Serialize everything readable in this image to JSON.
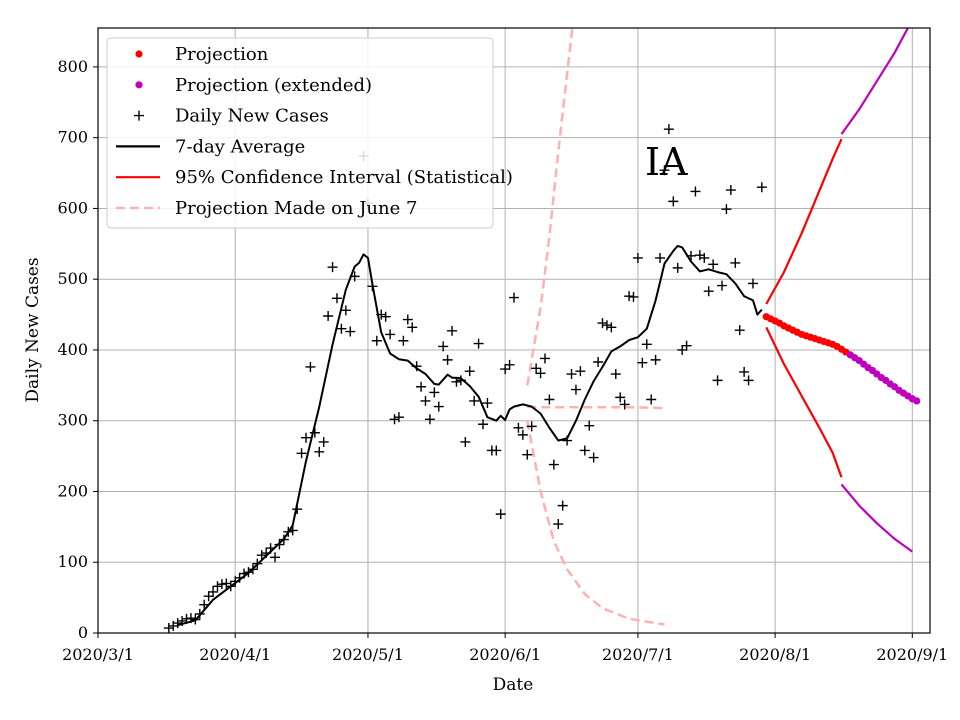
{
  "chart_data": {
    "type": "line",
    "annotation": "IA",
    "xlabel": "Date",
    "ylabel": "Daily New Cases",
    "x_ticks": [
      "2020/3/1",
      "2020/4/1",
      "2020/5/1",
      "2020/6/1",
      "2020/7/1",
      "2020/8/1",
      "2020/9/1"
    ],
    "y_ticks": [
      "0",
      "100",
      "200",
      "300",
      "400",
      "500",
      "600",
      "700",
      "800"
    ],
    "x_range_days": [
      0,
      188
    ],
    "ylim": [
      0,
      855
    ],
    "grid": true,
    "legend": {
      "position": "top-left",
      "entries": [
        {
          "label": "Projection",
          "marker": "dot",
          "color": "#ff0000"
        },
        {
          "label": "Projection (extended)",
          "marker": "dot",
          "color": "#bf00bf"
        },
        {
          "label": "Daily New Cases",
          "marker": "plus",
          "color": "#000000"
        },
        {
          "label": "7-day Average",
          "marker": "line",
          "color": "#000000"
        },
        {
          "label": "95% Confidence Interval (Statistical)",
          "marker": "line",
          "color": "#ff0000"
        },
        {
          "label": "Projection Made on June 7",
          "marker": "dashed",
          "color": "#ffb0b0"
        }
      ]
    },
    "colors": {
      "projection": "#ff0000",
      "extended": "#bf00bf",
      "daily": "#000000",
      "average": "#000000",
      "ci": "#ff0000",
      "june7": "#ffb0b0",
      "grid": "#b0b0b0"
    },
    "series": [
      {
        "name": "Daily New Cases",
        "x_unit": "days since 2020-03-01",
        "points": [
          [
            16,
            7
          ],
          [
            17,
            10
          ],
          [
            18,
            14
          ],
          [
            19,
            17
          ],
          [
            20,
            20
          ],
          [
            21,
            21
          ],
          [
            22,
            19
          ],
          [
            23,
            27
          ],
          [
            24,
            40
          ],
          [
            25,
            52
          ],
          [
            26,
            58
          ],
          [
            27,
            66
          ],
          [
            28,
            69
          ],
          [
            29,
            70
          ],
          [
            30,
            66
          ],
          [
            31,
            73
          ],
          [
            32,
            78
          ],
          [
            33,
            84
          ],
          [
            34,
            86
          ],
          [
            35,
            90
          ],
          [
            36,
            98
          ],
          [
            37,
            110
          ],
          [
            38,
            113
          ],
          [
            39,
            120
          ],
          [
            40,
            107
          ],
          [
            41,
            125
          ],
          [
            42,
            132
          ],
          [
            43,
            143
          ],
          [
            44,
            145
          ],
          [
            45,
            175
          ],
          [
            46,
            254
          ],
          [
            47,
            276
          ],
          [
            48,
            376
          ],
          [
            49,
            283
          ],
          [
            50,
            256
          ],
          [
            51,
            270
          ],
          [
            52,
            448
          ],
          [
            53,
            517
          ],
          [
            54,
            473
          ],
          [
            55,
            430
          ],
          [
            56,
            456
          ],
          [
            57,
            426
          ],
          [
            58,
            504
          ],
          [
            60,
            674
          ],
          [
            61,
            607
          ],
          [
            62,
            490
          ],
          [
            63,
            413
          ],
          [
            64,
            450
          ],
          [
            65,
            447
          ],
          [
            66,
            422
          ],
          [
            67,
            302
          ],
          [
            68,
            305
          ],
          [
            69,
            413
          ],
          [
            70,
            443
          ],
          [
            71,
            432
          ],
          [
            72,
            377
          ],
          [
            73,
            348
          ],
          [
            74,
            328
          ],
          [
            75,
            302
          ],
          [
            76,
            340
          ],
          [
            77,
            320
          ],
          [
            78,
            405
          ],
          [
            79,
            386
          ],
          [
            80,
            427
          ],
          [
            81,
            355
          ],
          [
            82,
            357
          ],
          [
            83,
            270
          ],
          [
            84,
            370
          ],
          [
            85,
            328
          ],
          [
            86,
            409
          ],
          [
            87,
            295
          ],
          [
            88,
            325
          ],
          [
            89,
            258
          ],
          [
            90,
            258
          ],
          [
            91,
            168
          ],
          [
            92,
            373
          ],
          [
            93,
            379
          ],
          [
            94,
            474
          ],
          [
            95,
            290
          ],
          [
            96,
            280
          ],
          [
            97,
            252
          ],
          [
            98,
            292
          ],
          [
            99,
            374
          ],
          [
            100,
            367
          ],
          [
            101,
            388
          ],
          [
            102,
            330
          ],
          [
            103,
            238
          ],
          [
            104,
            154
          ],
          [
            105,
            180
          ],
          [
            106,
            272
          ],
          [
            107,
            366
          ],
          [
            108,
            344
          ],
          [
            109,
            370
          ],
          [
            110,
            258
          ],
          [
            111,
            293
          ],
          [
            112,
            248
          ],
          [
            113,
            383
          ],
          [
            114,
            438
          ],
          [
            115,
            435
          ],
          [
            116,
            432
          ],
          [
            117,
            366
          ],
          [
            118,
            333
          ],
          [
            119,
            323
          ],
          [
            120,
            476
          ],
          [
            121,
            475
          ],
          [
            122,
            530
          ],
          [
            123,
            382
          ],
          [
            124,
            408
          ],
          [
            125,
            330
          ],
          [
            126,
            386
          ],
          [
            127,
            530
          ],
          [
            128,
            654
          ],
          [
            129,
            712
          ],
          [
            130,
            610
          ],
          [
            131,
            516
          ],
          [
            132,
            400
          ],
          [
            133,
            406
          ],
          [
            134,
            533
          ],
          [
            135,
            624
          ],
          [
            136,
            534
          ],
          [
            137,
            530
          ],
          [
            138,
            483
          ],
          [
            139,
            521
          ],
          [
            140,
            357
          ],
          [
            141,
            491
          ],
          [
            142,
            599
          ],
          [
            143,
            626
          ],
          [
            144,
            523
          ],
          [
            145,
            428
          ],
          [
            146,
            369
          ],
          [
            147,
            357
          ],
          [
            148,
            494
          ],
          [
            150,
            630
          ]
        ]
      },
      {
        "name": "7-day Average",
        "x_unit": "days since 2020-03-01",
        "points": [
          [
            18,
            11
          ],
          [
            22,
            18
          ],
          [
            26,
            47
          ],
          [
            30,
            66
          ],
          [
            34,
            85
          ],
          [
            38,
            109
          ],
          [
            42,
            133
          ],
          [
            44,
            152
          ],
          [
            47,
            243
          ],
          [
            50,
            320
          ],
          [
            53,
            408
          ],
          [
            56,
            485
          ],
          [
            58,
            518
          ],
          [
            59,
            523
          ],
          [
            60,
            535
          ],
          [
            61,
            530
          ],
          [
            62,
            493
          ],
          [
            64,
            425
          ],
          [
            66,
            395
          ],
          [
            68,
            387
          ],
          [
            70,
            385
          ],
          [
            72,
            374
          ],
          [
            74,
            366
          ],
          [
            76,
            352
          ],
          [
            77,
            351
          ],
          [
            79,
            365
          ],
          [
            80,
            361
          ],
          [
            82,
            360
          ],
          [
            84,
            349
          ],
          [
            86,
            334
          ],
          [
            88,
            305
          ],
          [
            90,
            300
          ],
          [
            91,
            307
          ],
          [
            92,
            301
          ],
          [
            93,
            316
          ],
          [
            94,
            320
          ],
          [
            96,
            323
          ],
          [
            98,
            320
          ],
          [
            100,
            310
          ],
          [
            102,
            290
          ],
          [
            104,
            272
          ],
          [
            106,
            275
          ],
          [
            108,
            300
          ],
          [
            110,
            330
          ],
          [
            112,
            356
          ],
          [
            114,
            376
          ],
          [
            116,
            398
          ],
          [
            118,
            405
          ],
          [
            120,
            414
          ],
          [
            122,
            418
          ],
          [
            124,
            430
          ],
          [
            126,
            470
          ],
          [
            128,
            522
          ],
          [
            130,
            540
          ],
          [
            131,
            547
          ],
          [
            132,
            545
          ],
          [
            134,
            525
          ],
          [
            136,
            511
          ],
          [
            138,
            514
          ],
          [
            140,
            510
          ],
          [
            142,
            507
          ],
          [
            144,
            494
          ],
          [
            146,
            476
          ],
          [
            148,
            470
          ],
          [
            149,
            450
          ],
          [
            150,
            457
          ]
        ]
      },
      {
        "name": "Projection",
        "x_unit": "days since 2020-03-01",
        "points": [
          [
            151,
            447
          ],
          [
            152,
            444
          ],
          [
            153,
            441
          ],
          [
            154,
            438
          ],
          [
            155,
            434
          ],
          [
            156,
            431
          ],
          [
            157,
            428
          ],
          [
            158,
            425
          ],
          [
            159,
            422
          ],
          [
            160,
            420
          ],
          [
            161,
            418
          ],
          [
            162,
            416
          ],
          [
            163,
            414
          ],
          [
            164,
            412
          ],
          [
            165,
            410
          ],
          [
            166,
            408
          ],
          [
            167,
            405
          ],
          [
            168,
            401
          ],
          [
            169,
            397
          ]
        ]
      },
      {
        "name": "Projection (extended)",
        "x_unit": "days since 2020-03-01",
        "points": [
          [
            170,
            393
          ],
          [
            171,
            389
          ],
          [
            172,
            385
          ],
          [
            173,
            380
          ],
          [
            174,
            375
          ],
          [
            175,
            371
          ],
          [
            176,
            366
          ],
          [
            177,
            361
          ],
          [
            178,
            357
          ],
          [
            179,
            352
          ],
          [
            180,
            348
          ],
          [
            181,
            343
          ],
          [
            182,
            339
          ],
          [
            183,
            335
          ],
          [
            184,
            331
          ],
          [
            185,
            328
          ]
        ]
      },
      {
        "name": "95% Confidence Interval (Statistical) upper",
        "x_unit": "days since 2020-03-01",
        "points": [
          [
            151,
            465
          ],
          [
            155,
            510
          ],
          [
            159,
            565
          ],
          [
            163,
            625
          ],
          [
            166,
            670
          ],
          [
            168,
            698
          ]
        ]
      },
      {
        "name": "95% Confidence Interval (Statistical) lower",
        "x_unit": "days since 2020-03-01",
        "points": [
          [
            151,
            432
          ],
          [
            155,
            380
          ],
          [
            159,
            335
          ],
          [
            163,
            290
          ],
          [
            166,
            255
          ],
          [
            168,
            220
          ]
        ]
      },
      {
        "name": "Confidence interval upper (extended)",
        "x_unit": "days since 2020-03-01",
        "points": [
          [
            168,
            705
          ],
          [
            172,
            740
          ],
          [
            176,
            780
          ],
          [
            180,
            820
          ],
          [
            183,
            855
          ]
        ]
      },
      {
        "name": "Confidence interval lower (extended)",
        "x_unit": "days since 2020-03-01",
        "points": [
          [
            168,
            210
          ],
          [
            172,
            180
          ],
          [
            176,
            155
          ],
          [
            180,
            133
          ],
          [
            184,
            115
          ]
        ]
      },
      {
        "name": "Projection Made on June 7",
        "x_unit": "days since 2020-03-01",
        "points": [
          [
            97,
            320
          ],
          [
            100,
            319
          ],
          [
            110,
            319
          ],
          [
            120,
            319
          ],
          [
            128,
            318
          ]
        ]
      },
      {
        "name": "Projection Made on June 7 upper",
        "x_unit": "days since 2020-03-01",
        "points": [
          [
            97,
            350
          ],
          [
            100,
            460
          ],
          [
            102,
            560
          ],
          [
            104,
            680
          ],
          [
            106,
            790
          ],
          [
            108,
            900
          ]
        ]
      },
      {
        "name": "Projection Made on June 7 lower",
        "x_unit": "days since 2020-03-01",
        "points": [
          [
            97,
            300
          ],
          [
            100,
            200
          ],
          [
            103,
            130
          ],
          [
            106,
            90
          ],
          [
            110,
            55
          ],
          [
            114,
            35
          ],
          [
            120,
            20
          ],
          [
            128,
            12
          ]
        ]
      }
    ]
  }
}
